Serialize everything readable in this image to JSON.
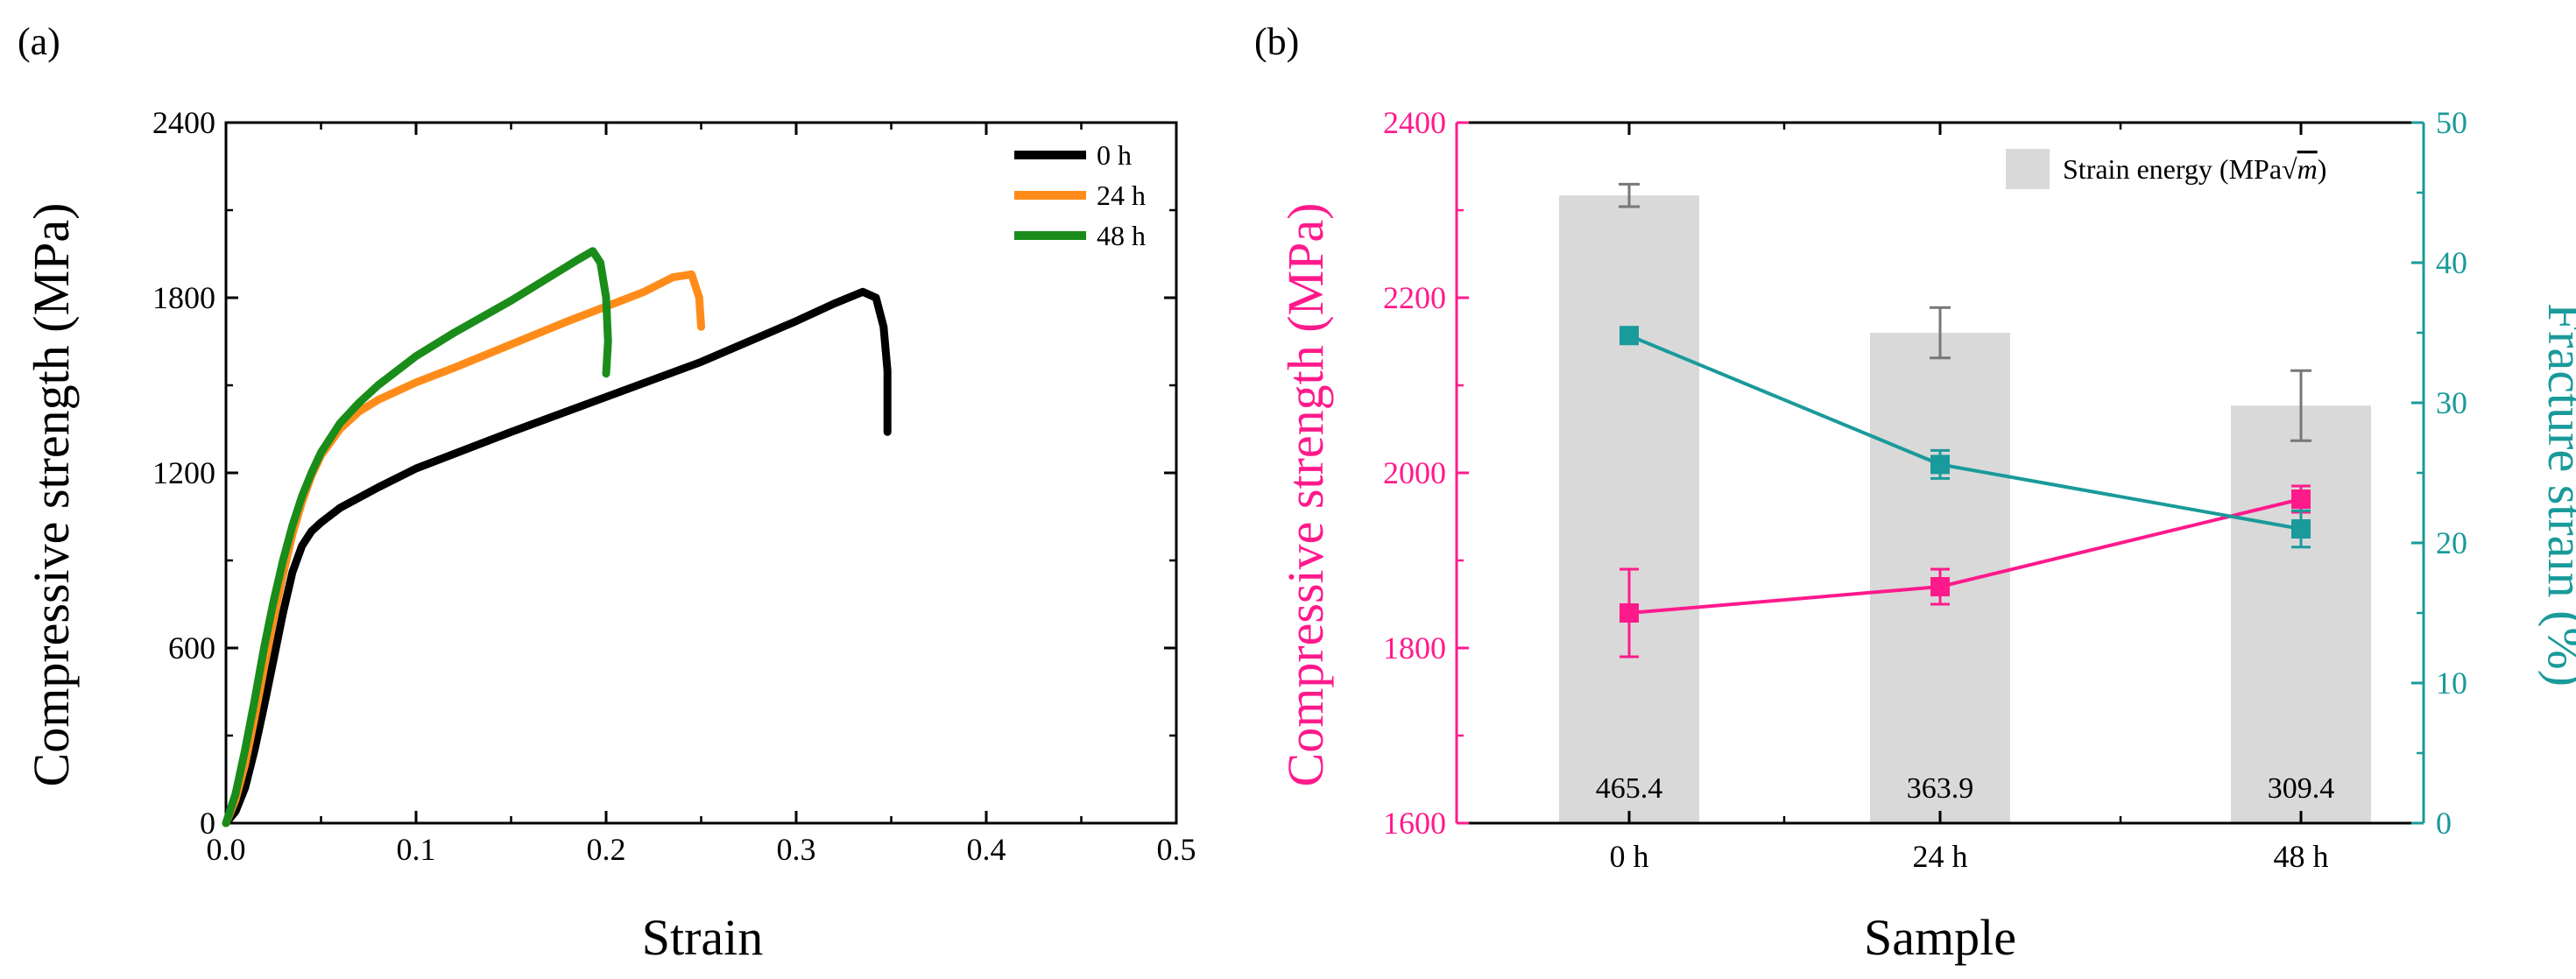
{
  "chart_data": [
    {
      "type": "line",
      "panel_label": "(a)",
      "title": "",
      "xlabel": "Strain",
      "ylabel": "Compressive strength (MPa)",
      "xlim": [
        0,
        0.5
      ],
      "ylim": [
        0,
        2400
      ],
      "x_ticks": [
        0.0,
        0.1,
        0.2,
        0.3,
        0.4,
        0.5
      ],
      "x_tick_labels": [
        "0.0",
        "0.1",
        "0.2",
        "0.3",
        "0.4",
        "0.5"
      ],
      "y_ticks": [
        0,
        600,
        1200,
        1800,
        2400
      ],
      "y_tick_labels": [
        "0",
        "600",
        "1200",
        "1800",
        "2400"
      ],
      "legend_position": "top-right",
      "series": [
        {
          "name": "0 h",
          "color": "#000000",
          "x": [
            0,
            0.005,
            0.01,
            0.015,
            0.02,
            0.025,
            0.03,
            0.035,
            0.04,
            0.045,
            0.05,
            0.06,
            0.08,
            0.1,
            0.15,
            0.2,
            0.25,
            0.3,
            0.32,
            0.335,
            0.342,
            0.346,
            0.348,
            0.348
          ],
          "y": [
            0,
            40,
            120,
            250,
            400,
            560,
            720,
            860,
            950,
            1000,
            1030,
            1080,
            1150,
            1215,
            1340,
            1460,
            1580,
            1720,
            1780,
            1820,
            1800,
            1700,
            1550,
            1340
          ]
        },
        {
          "name": "24 h",
          "color": "#ff8c1a",
          "x": [
            0,
            0.005,
            0.01,
            0.015,
            0.02,
            0.025,
            0.03,
            0.035,
            0.04,
            0.045,
            0.05,
            0.06,
            0.07,
            0.08,
            0.1,
            0.12,
            0.15,
            0.18,
            0.2,
            0.22,
            0.235,
            0.245,
            0.249,
            0.25
          ],
          "y": [
            0,
            80,
            200,
            360,
            530,
            700,
            850,
            990,
            1100,
            1190,
            1260,
            1350,
            1410,
            1450,
            1510,
            1560,
            1640,
            1720,
            1770,
            1820,
            1870,
            1880,
            1800,
            1700
          ]
        },
        {
          "name": "48 h",
          "color": "#1a8c1a",
          "x": [
            0,
            0.005,
            0.01,
            0.015,
            0.02,
            0.025,
            0.03,
            0.035,
            0.04,
            0.045,
            0.05,
            0.06,
            0.07,
            0.08,
            0.1,
            0.12,
            0.15,
            0.17,
            0.185,
            0.193,
            0.197,
            0.2,
            0.201,
            0.2
          ],
          "y": [
            0,
            100,
            250,
            420,
            600,
            760,
            900,
            1020,
            1120,
            1200,
            1270,
            1370,
            1440,
            1500,
            1600,
            1680,
            1790,
            1870,
            1930,
            1960,
            1920,
            1800,
            1650,
            1540
          ]
        }
      ]
    },
    {
      "type": "bar",
      "panel_label": "(b)",
      "title": "",
      "xlabel": "Sample",
      "ylabel": "Compressive strength (MPa)",
      "y2label": "Fracture strain (%)",
      "categories": [
        "0 h",
        "24 h",
        "48 h"
      ],
      "ylim": [
        1600,
        2400
      ],
      "y2lim": [
        0,
        50
      ],
      "y_ticks": [
        1600,
        1800,
        2000,
        2200,
        2400
      ],
      "y_tick_labels": [
        "1600",
        "1800",
        "2000",
        "2200",
        "2400"
      ],
      "y2_ticks": [
        0,
        10,
        20,
        30,
        40,
        50
      ],
      "y2_tick_labels": [
        "0",
        "10",
        "20",
        "30",
        "40",
        "50"
      ],
      "legend_position": "top-right",
      "legend_label": "Strain energy (MPa√m)",
      "legend_prefix": "Strain energy (MPa",
      "legend_root_symbol": "√",
      "legend_root_var": "m",
      "legend_suffix": ")",
      "bars": {
        "name": "Strain energy (MPa√m)",
        "color": "#d9d9d9",
        "values": [
          465.4,
          363.9,
          309.4
        ],
        "labels": [
          "465.4",
          "363.9",
          "309.4"
        ],
        "error_bars_in_fracture_strain_units": [
          0.8,
          1.8,
          2.5
        ],
        "heights_in_fracture_strain_units": [
          44.8,
          35.0,
          29.8
        ]
      },
      "series": [
        {
          "name": "Compressive strength",
          "axis": "left",
          "color": "#ff1a8c",
          "values": [
            1840,
            1870,
            1970
          ],
          "errors": [
            50,
            20,
            15
          ]
        },
        {
          "name": "Fracture strain",
          "axis": "right",
          "color": "#1a9a9a",
          "values": [
            34.8,
            25.6,
            21.0
          ],
          "errors": [
            0.5,
            1.0,
            1.3
          ]
        }
      ]
    }
  ]
}
